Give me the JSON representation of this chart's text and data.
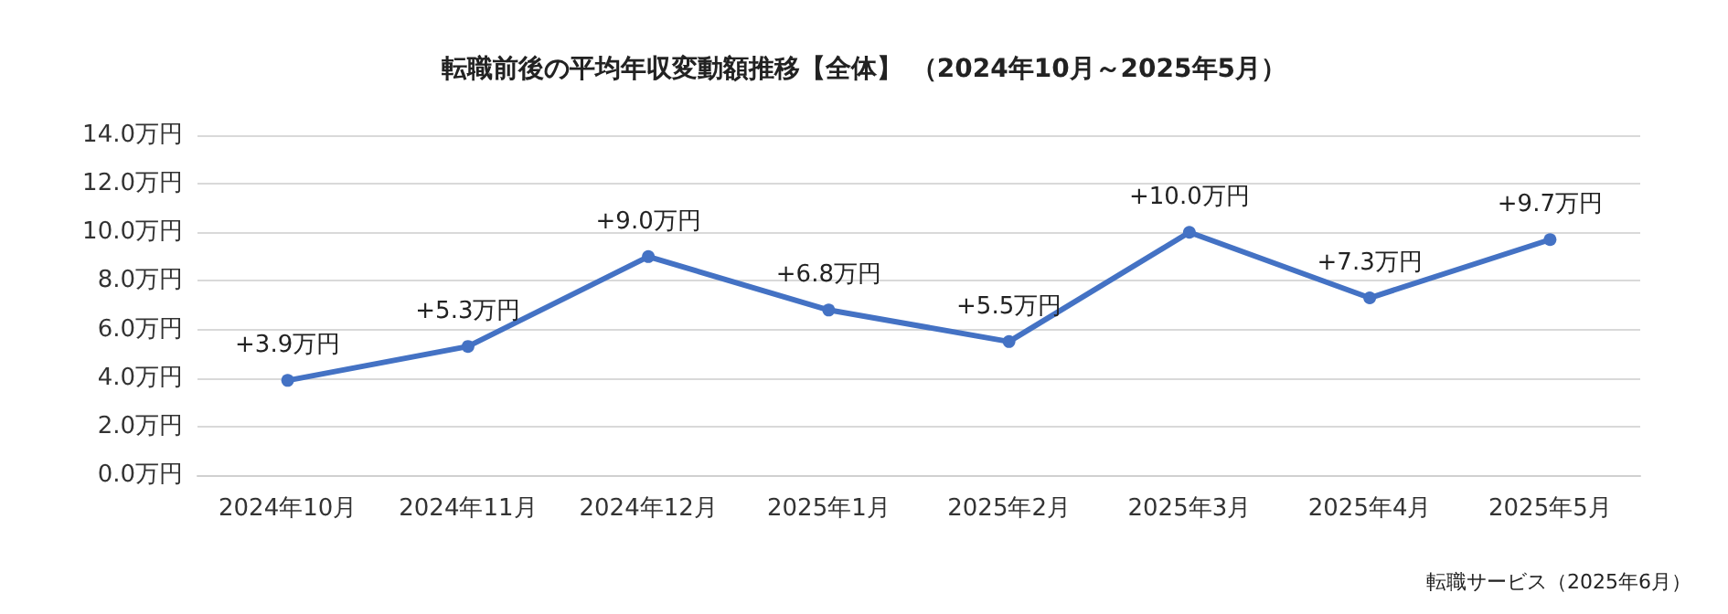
{
  "chart_data": {
    "type": "line",
    "title": "転職前後の平均年収変動額推移【全体】 （2024年10月～2025年5月）",
    "categories": [
      "2024年10月",
      "2024年11月",
      "2024年12月",
      "2025年1月",
      "2025年2月",
      "2025年3月",
      "2025年4月",
      "2025年5月"
    ],
    "series": [
      {
        "color": "#4472c4",
        "values": [
          3.9,
          5.3,
          9.0,
          6.8,
          5.5,
          10.0,
          7.3,
          9.7
        ],
        "value_labels": [
          "+3.9万円",
          "+5.3万円",
          "+9.0万円",
          "+6.8万円",
          "+5.5万円",
          "+10.0万円",
          "+7.3万円",
          "+9.7万円"
        ]
      }
    ],
    "ylim": [
      0,
      14
    ],
    "yticks": [
      {
        "value": 0,
        "label": "0.0万円"
      },
      {
        "value": 2,
        "label": "2.0万円"
      },
      {
        "value": 4,
        "label": "4.0万円"
      },
      {
        "value": 6,
        "label": "6.0万円"
      },
      {
        "value": 8,
        "label": "8.0万円"
      },
      {
        "value": 10,
        "label": "10.0万円"
      },
      {
        "value": 12,
        "label": "12.0万円"
      },
      {
        "value": 14,
        "label": "14.0万円"
      }
    ],
    "grid": "y",
    "marker": "circle",
    "line_style": "solid",
    "annotations": [
      "転職サービス（2025年6月）"
    ]
  }
}
